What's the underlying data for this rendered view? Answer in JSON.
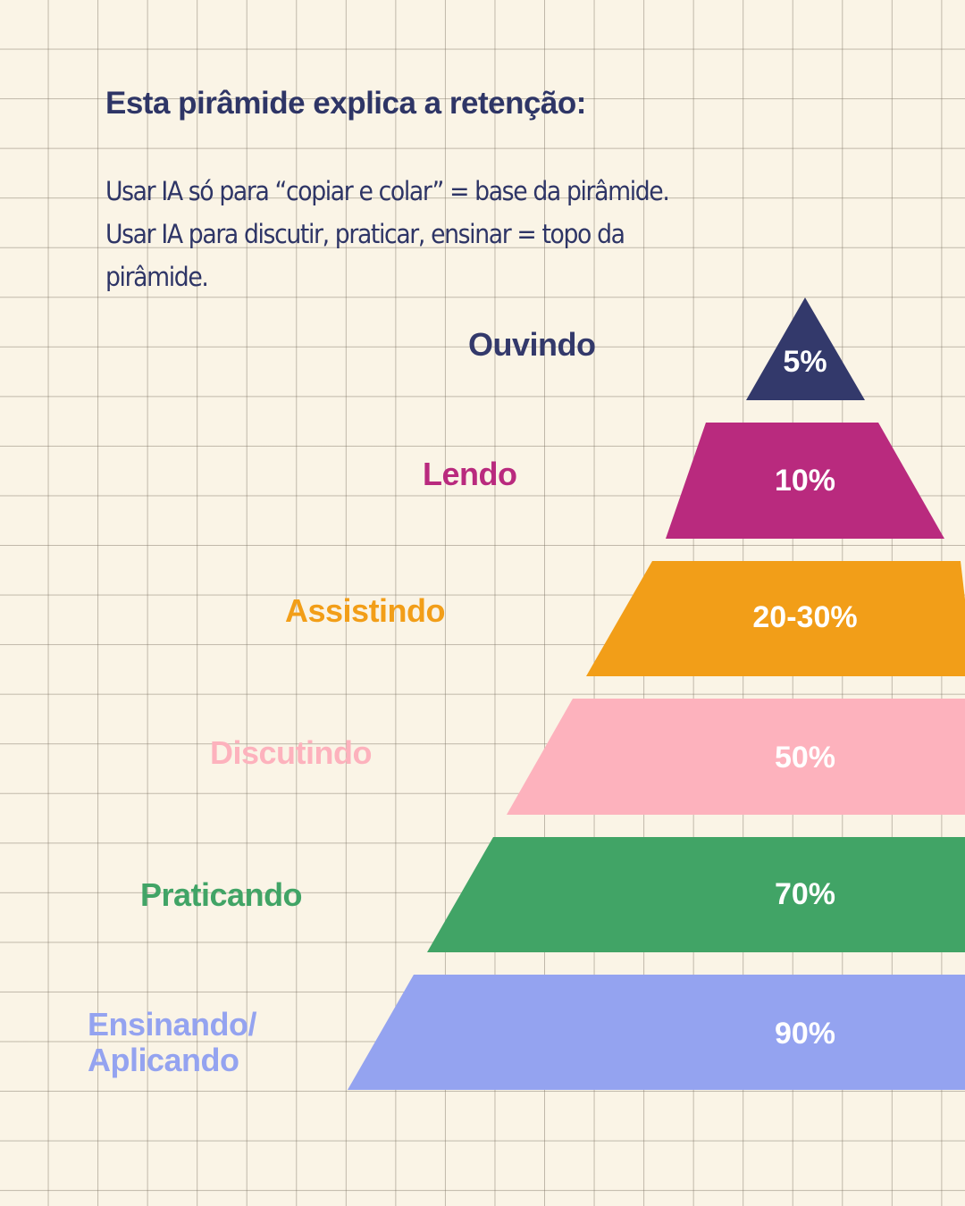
{
  "title": "Esta pirâmide explica a retenção:",
  "intro": [
    "Usar IA só para “copiar e colar” = base da pirâmide.",
    "Usar IA para discutir, praticar, ensinar = topo da",
    "pirâmide."
  ],
  "levels": [
    {
      "label": "Ouvindo",
      "percent": "5%",
      "color": "#33396b"
    },
    {
      "label": "Lendo",
      "percent": "10%",
      "color": "#b92a7e"
    },
    {
      "label": "Assistindo",
      "percent": "20-30%",
      "color": "#f29e18"
    },
    {
      "label": "Discutindo",
      "percent": "50%",
      "color": "#fdb2bd"
    },
    {
      "label": "Praticando",
      "percent": "70%",
      "color": "#41a466"
    },
    {
      "label": "Ensinando/ Aplicando",
      "label_lines": [
        "Ensinando/",
        "Aplicando"
      ],
      "percent": "90%",
      "color": "#94a3f0"
    }
  ]
}
